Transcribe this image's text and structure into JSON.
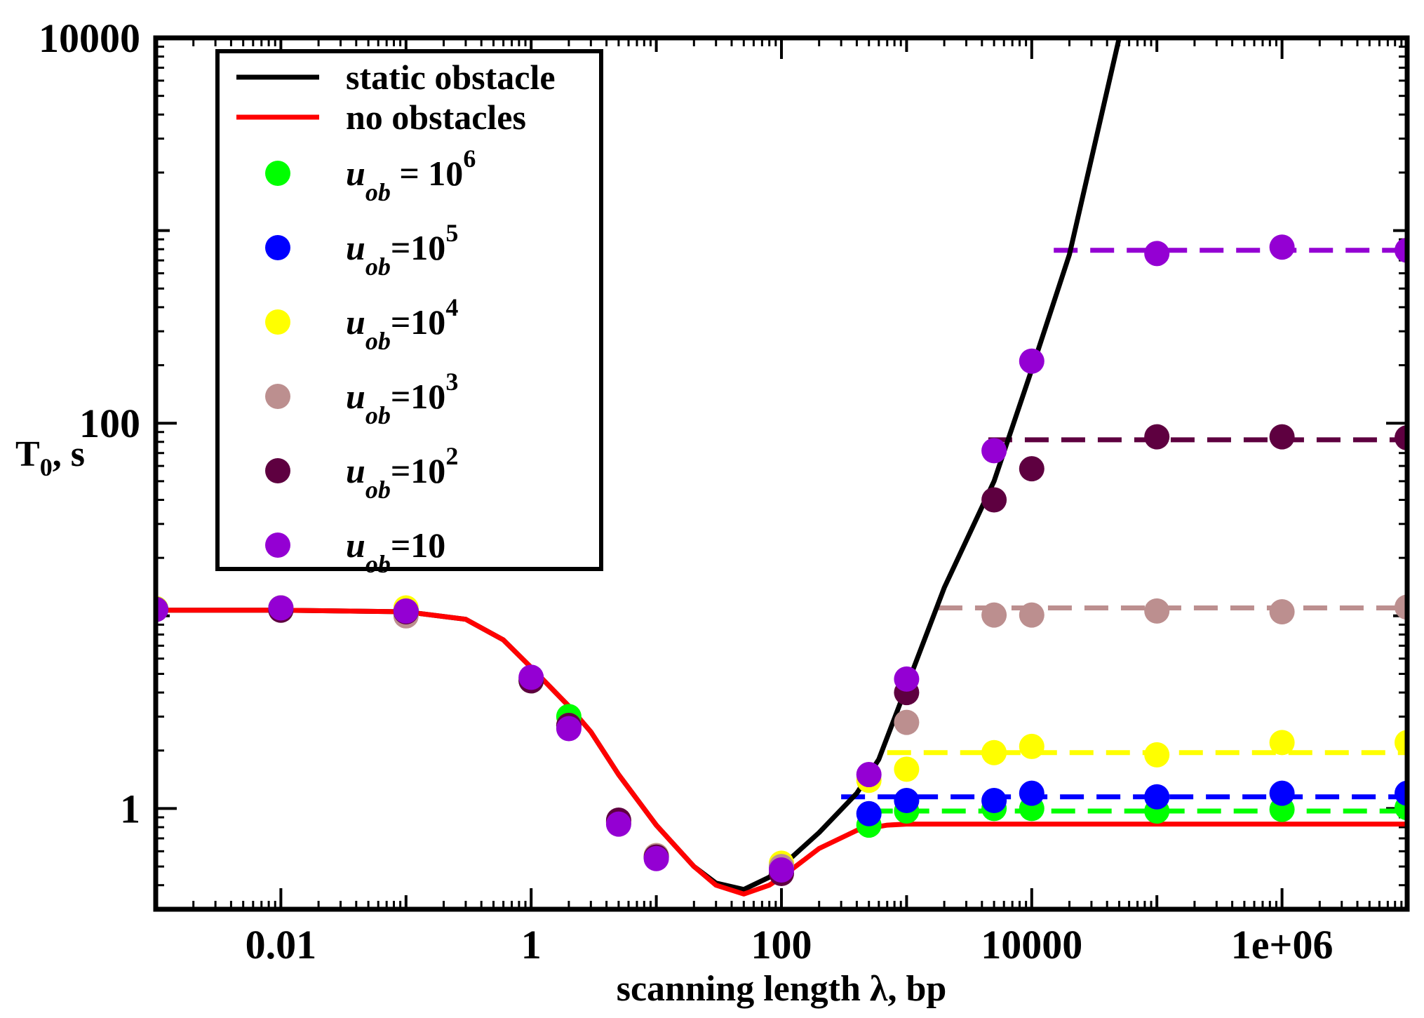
{
  "chart_data": {
    "type": "line",
    "title": "",
    "xlabel": "scanning length λ, bp",
    "ylabel": "T",
    "ylabel_sub": "0",
    "ylabel_unit": ", s",
    "xscale": "log",
    "yscale": "log",
    "xlim": [
      0.001,
      10000000
    ],
    "ylim": [
      0.3,
      10000
    ],
    "xticks": [
      {
        "value": 0.01,
        "label": "0.01"
      },
      {
        "value": 1,
        "label": "1"
      },
      {
        "value": 100,
        "label": "100"
      },
      {
        "value": 10000,
        "label": "10000"
      },
      {
        "value": 1000000,
        "label": "1e+06"
      }
    ],
    "yticks": [
      {
        "value": 1,
        "label": "1"
      },
      {
        "value": 100,
        "label": "100"
      },
      {
        "value": 10000,
        "label": "10000"
      }
    ],
    "grid": false,
    "legend_position": "top-left",
    "lines": [
      {
        "name": "static obstacle",
        "color": "#000000",
        "points": [
          [
            0.001,
            10.7
          ],
          [
            0.01,
            10.7
          ],
          [
            0.1,
            10.5
          ],
          [
            0.3,
            9.6
          ],
          [
            0.6,
            7.5
          ],
          [
            1,
            5.4
          ],
          [
            2,
            3.4
          ],
          [
            3,
            2.5
          ],
          [
            5,
            1.5
          ],
          [
            10,
            0.82
          ],
          [
            20,
            0.5
          ],
          [
            30,
            0.41
          ],
          [
            50,
            0.38
          ],
          [
            80,
            0.44
          ],
          [
            100,
            0.5
          ],
          [
            200,
            0.75
          ],
          [
            400,
            1.2
          ],
          [
            600,
            1.8
          ],
          [
            1000,
            4.3
          ],
          [
            2000,
            14
          ],
          [
            5000,
            50
          ],
          [
            10000,
            190
          ],
          [
            20000,
            750
          ],
          [
            50000,
            10000
          ]
        ]
      },
      {
        "name": "no obstacles",
        "color": "#ff0000",
        "points": [
          [
            0.001,
            10.7
          ],
          [
            0.01,
            10.7
          ],
          [
            0.1,
            10.5
          ],
          [
            0.3,
            9.6
          ],
          [
            0.6,
            7.5
          ],
          [
            1,
            5.4
          ],
          [
            2,
            3.4
          ],
          [
            3,
            2.5
          ],
          [
            5,
            1.5
          ],
          [
            10,
            0.82
          ],
          [
            20,
            0.5
          ],
          [
            30,
            0.4
          ],
          [
            50,
            0.36
          ],
          [
            80,
            0.4
          ],
          [
            100,
            0.44
          ],
          [
            200,
            0.62
          ],
          [
            400,
            0.77
          ],
          [
            700,
            0.82
          ],
          [
            1000,
            0.83
          ],
          [
            10000,
            0.83
          ],
          [
            10000000,
            0.83
          ]
        ]
      }
    ],
    "series": [
      {
        "name": "u_ob = 10^6",
        "legend": {
          "base": "u",
          "sub": "ob",
          "op": " = 10",
          "sup": "6"
        },
        "color": "#00ff00",
        "x": [
          0.001,
          0.01,
          0.1,
          1,
          2,
          5,
          10,
          100,
          500,
          1000,
          5000,
          10000,
          100000,
          1000000,
          10000000
        ],
        "y": [
          10.9,
          11,
          10.8,
          4.6,
          3.0,
          0.85,
          0.56,
          0.5,
          0.82,
          0.97,
          1.0,
          1.0,
          0.97,
          0.99,
          1.01
        ],
        "plateau": {
          "from": 500,
          "y": 0.97
        }
      },
      {
        "name": "u_ob=10^5",
        "legend": {
          "base": "u",
          "sub": "ob",
          "op": "=10",
          "sup": "5"
        },
        "color": "#0000ff",
        "x": [
          0.001,
          0.01,
          0.1,
          1,
          2,
          5,
          10,
          100,
          500,
          1000,
          5000,
          10000,
          100000,
          1000000,
          10000000
        ],
        "y": [
          10.8,
          11,
          10.8,
          4.7,
          2.7,
          0.85,
          0.56,
          0.5,
          0.94,
          1.1,
          1.1,
          1.2,
          1.15,
          1.2,
          1.2
        ],
        "plateau": {
          "from": 300,
          "y": 1.15
        }
      },
      {
        "name": "u_ob=10^4",
        "legend": {
          "base": "u",
          "sub": "ob",
          "op": "=10",
          "sup": "4"
        },
        "color": "#ffff00",
        "x": [
          0.001,
          0.01,
          0.1,
          1,
          2,
          5,
          10,
          100,
          500,
          1000,
          5000,
          10000,
          100000,
          1000000,
          10000000
        ],
        "y": [
          10.9,
          11,
          11,
          4.7,
          2.7,
          0.85,
          0.57,
          0.52,
          1.4,
          1.6,
          1.95,
          2.1,
          1.9,
          2.2,
          2.2
        ],
        "plateau": {
          "from": 700,
          "y": 1.95
        }
      },
      {
        "name": "u_ob=10^3",
        "legend": {
          "base": "u",
          "sub": "ob",
          "op": "=10",
          "sup": "3"
        },
        "color": "#bc8f8f",
        "x": [
          0.001,
          0.01,
          0.1,
          1,
          2,
          5,
          10,
          100,
          1000,
          5000,
          10000,
          100000,
          1000000,
          10000000
        ],
        "y": [
          10.8,
          10.8,
          10.0,
          4.6,
          2.7,
          0.86,
          0.57,
          0.5,
          2.8,
          10.1,
          10.1,
          10.6,
          10.5,
          11.1
        ],
        "plateau": {
          "from": 1800,
          "y": 11
        }
      },
      {
        "name": "u_ob=10^2",
        "legend": {
          "base": "u",
          "sub": "ob",
          "op": "=10",
          "sup": "2"
        },
        "color": "#5e0040",
        "x": [
          0.001,
          0.01,
          0.1,
          1,
          2,
          5,
          10,
          100,
          1000,
          5000,
          10000,
          100000,
          1000000,
          10000000
        ],
        "y": [
          10.8,
          10.7,
          10.5,
          4.6,
          2.7,
          0.87,
          0.56,
          0.46,
          4.0,
          40,
          58,
          85,
          85,
          84
        ],
        "plateau": {
          "from": 4500,
          "y": 82
        }
      },
      {
        "name": "u_ob=10",
        "legend": {
          "base": "u",
          "sub": "ob",
          "op": "=10",
          "sup": ""
        },
        "color": "#9400d3",
        "x": [
          0.001,
          0.01,
          0.1,
          1,
          2,
          5,
          10,
          100,
          500,
          1000,
          5000,
          10000,
          100000,
          1000000,
          10000000
        ],
        "y": [
          10.8,
          11,
          10.6,
          4.8,
          2.6,
          0.83,
          0.55,
          0.48,
          1.5,
          4.7,
          72,
          210,
          760,
          820,
          790
        ],
        "plateau": {
          "from": 15000,
          "y": 790
        }
      }
    ]
  }
}
